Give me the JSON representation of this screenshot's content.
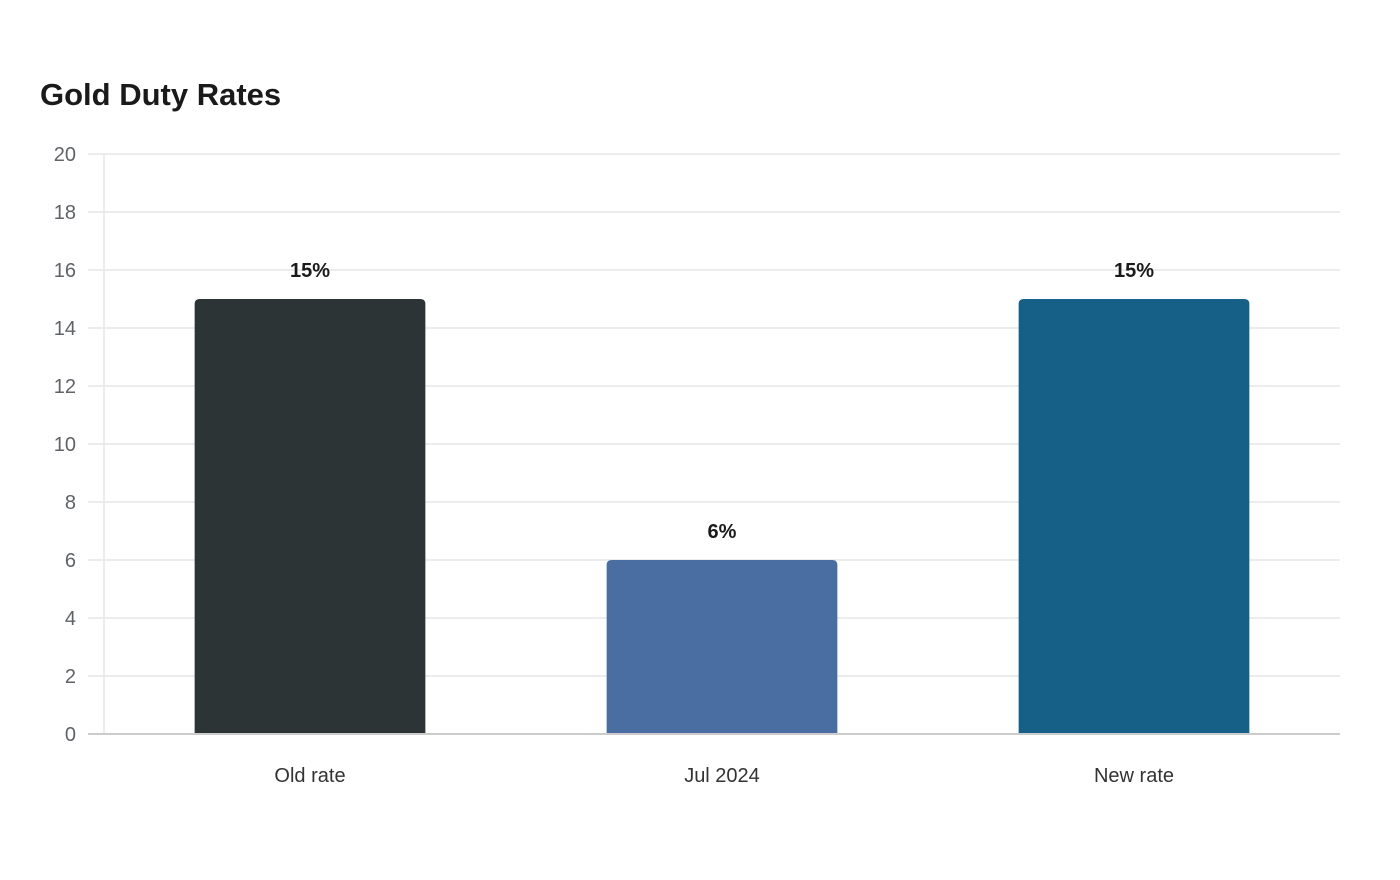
{
  "chart_data": {
    "type": "bar",
    "title": "Gold Duty Rates",
    "categories": [
      "Old rate",
      "Jul 2024",
      "New rate"
    ],
    "values": [
      15,
      6,
      15
    ],
    "data_labels": [
      "15%",
      "6%",
      "15%"
    ],
    "colors": [
      "#2d3436",
      "#4a6da2",
      "#166088"
    ],
    "xlabel": "",
    "ylabel": "",
    "ylim": [
      0,
      20
    ],
    "yticks": [
      0,
      2,
      4,
      6,
      8,
      10,
      12,
      14,
      16,
      18,
      20
    ],
    "grid": true,
    "legend": "none"
  }
}
